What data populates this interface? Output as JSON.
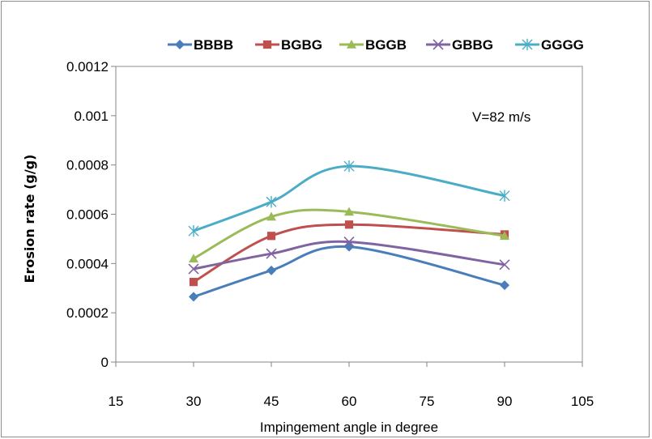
{
  "chart_data": {
    "type": "line",
    "xlabel": "Impingement angle in degree",
    "ylabel": "Erosion rate (g/g)",
    "xlim": [
      15,
      105
    ],
    "ylim": [
      0,
      0.0012
    ],
    "x_ticks": [
      "15",
      "30",
      "45",
      "60",
      "75",
      "90",
      "105"
    ],
    "y_ticks": [
      "0",
      "0.0002",
      "0.0004",
      "0.0006",
      "0.0008",
      "0.001",
      "0.0012"
    ],
    "annotation": "V=82 m/s",
    "grid": false,
    "legend_position": "top",
    "x": [
      30,
      45,
      60,
      90
    ],
    "series": [
      {
        "name": "BBBB",
        "color": "#4a7ebb",
        "marker": "diamond",
        "values": [
          0.000265,
          0.000372,
          0.000468,
          0.000312
        ]
      },
      {
        "name": "BGBG",
        "color": "#c0504d",
        "marker": "square",
        "values": [
          0.000325,
          0.000512,
          0.000558,
          0.000518
        ]
      },
      {
        "name": "BGGB",
        "color": "#9bbb59",
        "marker": "triangle",
        "values": [
          0.00042,
          0.00059,
          0.00061,
          0.000512
        ]
      },
      {
        "name": "GBBG",
        "color": "#8064a2",
        "marker": "x",
        "values": [
          0.000378,
          0.00044,
          0.000488,
          0.000395
        ]
      },
      {
        "name": "GGGG",
        "color": "#4bacc6",
        "marker": "star",
        "values": [
          0.000532,
          0.00065,
          0.000795,
          0.000675
        ]
      }
    ]
  }
}
